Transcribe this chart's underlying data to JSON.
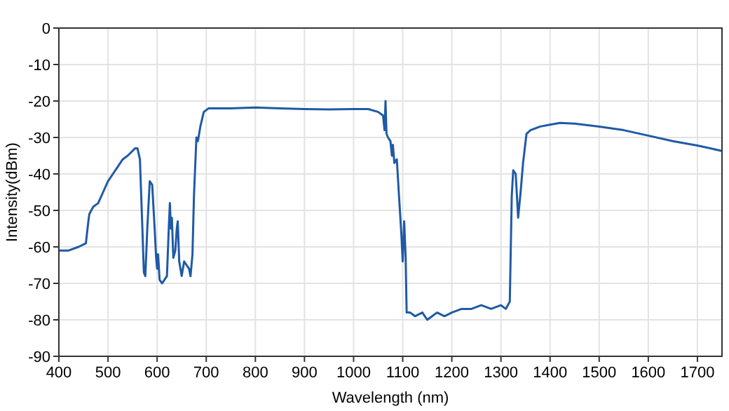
{
  "chart_data": {
    "type": "line",
    "xlabel": "Wavelength (nm)",
    "ylabel": "Intensity(dBm)",
    "xlim": [
      400,
      1750
    ],
    "ylim": [
      -90,
      0
    ],
    "xticks": [
      400,
      500,
      600,
      700,
      800,
      900,
      1000,
      1100,
      1200,
      1300,
      1400,
      1500,
      1600,
      1700
    ],
    "yticks": [
      -90,
      -80,
      -70,
      -60,
      -50,
      -40,
      -30,
      -20,
      -10,
      0
    ],
    "grid": true,
    "series": [
      {
        "color": "#1f5aa6",
        "x": [
          400,
          420,
          440,
          455,
          460,
          462,
          470,
          480,
          490,
          500,
          510,
          520,
          530,
          540,
          555,
          560,
          565,
          570,
          573,
          576,
          580,
          585,
          590,
          595,
          598,
          600,
          602,
          605,
          610,
          615,
          620,
          624,
          626,
          628,
          630,
          633,
          637,
          640,
          642,
          645,
          650,
          655,
          660,
          665,
          668,
          672,
          675,
          680,
          683,
          688,
          695,
          705,
          750,
          800,
          850,
          900,
          950,
          1000,
          1030,
          1050,
          1060,
          1063,
          1065,
          1067,
          1070,
          1075,
          1078,
          1080,
          1083,
          1088,
          1092,
          1097,
          1100,
          1103,
          1106,
          1108,
          1115,
          1125,
          1140,
          1150,
          1160,
          1170,
          1185,
          1200,
          1220,
          1240,
          1260,
          1280,
          1300,
          1310,
          1318,
          1322,
          1325,
          1330,
          1335,
          1340,
          1345,
          1352,
          1360,
          1380,
          1400,
          1420,
          1450,
          1500,
          1550,
          1600,
          1650,
          1700,
          1750
        ],
        "values": [
          -61,
          -61,
          -60,
          -59,
          -53,
          -51,
          -49,
          -48,
          -45,
          -42,
          -40,
          -38,
          -36,
          -35,
          -33,
          -33,
          -36,
          -55,
          -67,
          -68,
          -55,
          -42,
          -43,
          -55,
          -63,
          -66,
          -62,
          -69,
          -70,
          -69,
          -68,
          -54,
          -48,
          -55,
          -52,
          -63,
          -61,
          -55,
          -53,
          -64,
          -68,
          -64,
          -65,
          -66,
          -68,
          -62,
          -46,
          -30,
          -31,
          -27,
          -23,
          -22,
          -22,
          -21.8,
          -22,
          -22.2,
          -22.3,
          -22.2,
          -22.2,
          -23,
          -24,
          -28,
          -20,
          -29,
          -30,
          -31,
          -35,
          -32,
          -37,
          -36,
          -45,
          -56,
          -64,
          -53,
          -63,
          -78,
          -78,
          -79,
          -78,
          -80,
          -79,
          -78,
          -79,
          -78,
          -77,
          -77,
          -76,
          -77,
          -76,
          -77,
          -75,
          -46,
          -39,
          -40,
          -52,
          -45,
          -37,
          -29,
          -28,
          -27,
          -26.5,
          -26,
          -26.2,
          -27,
          -28,
          -29.5,
          -31,
          -32.2,
          -33.7
        ]
      }
    ]
  }
}
